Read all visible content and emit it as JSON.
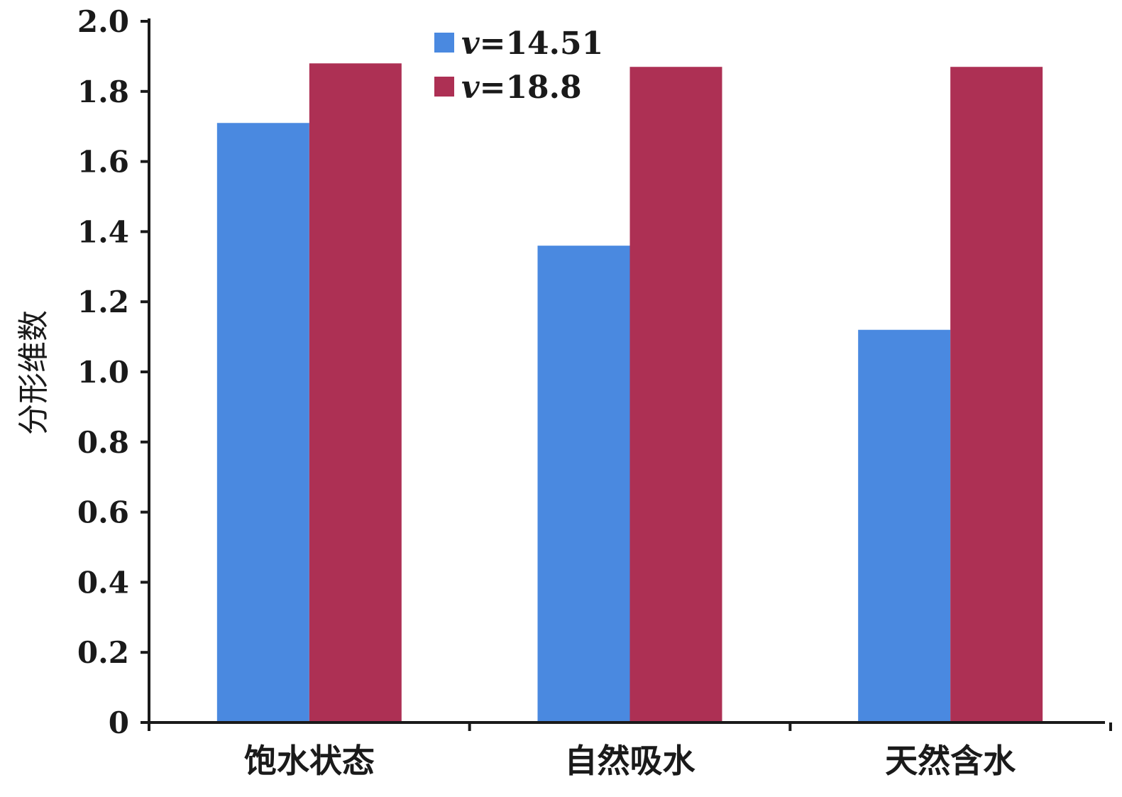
{
  "chart_data": {
    "type": "bar",
    "title": "",
    "xlabel": "",
    "ylabel": "分形维数",
    "ylim": [
      0,
      2.0
    ],
    "yticks": [
      "0",
      "0.2",
      "0.4",
      "0.6",
      "0.8",
      "1.0",
      "1.2",
      "1.4",
      "1.6",
      "1.8",
      "2.0"
    ],
    "categories": [
      "饱水状态",
      "自然吸水",
      "天然含水"
    ],
    "series": [
      {
        "name": "v=14.51",
        "var": "v",
        "value_label": "=14.51",
        "color": "#4a89e0",
        "values": [
          1.71,
          1.36,
          1.12
        ]
      },
      {
        "name": "v=18.8",
        "var": "v",
        "value_label": "=18.8",
        "color": "#ad3054",
        "values": [
          1.88,
          1.87,
          1.87
        ]
      }
    ],
    "legend_position": "top-center",
    "grid": false
  }
}
